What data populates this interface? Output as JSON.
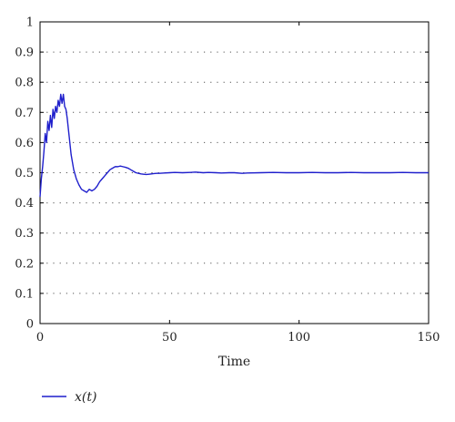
{
  "chart_data": {
    "type": "line",
    "xlabel": "Time",
    "ylabel": "",
    "xlim": [
      0,
      150
    ],
    "ylim": [
      0,
      1
    ],
    "xticks": [
      0,
      50,
      100,
      150
    ],
    "yticks": [
      0,
      0.1,
      0.2,
      0.3,
      0.4,
      0.5,
      0.6,
      0.7,
      0.8,
      0.9,
      1
    ],
    "grid": "horizontal-dotted",
    "legend_position": "bottom-left",
    "colors": {
      "line": "#1f1fcc",
      "axis": "#000000",
      "grid": "#555555"
    },
    "series": [
      {
        "name": "x(t)",
        "x": [
          0,
          0.5,
          1,
          1.5,
          2,
          2.5,
          3,
          3.5,
          4,
          4.5,
          5,
          5.5,
          6,
          6.5,
          7,
          7.5,
          8,
          8.5,
          9,
          9.5,
          10,
          10.5,
          11,
          11.5,
          12,
          13,
          14,
          15,
          16,
          17,
          18,
          19,
          20,
          21,
          22,
          23,
          24,
          25,
          26,
          27,
          28,
          29,
          30,
          31,
          32,
          33,
          34,
          35,
          36,
          37,
          38,
          39,
          40,
          41,
          42,
          43,
          44,
          45,
          46,
          48,
          50,
          52,
          55,
          58,
          60,
          63,
          65,
          68,
          70,
          73,
          75,
          78,
          80,
          85,
          90,
          95,
          100,
          105,
          110,
          115,
          120,
          125,
          130,
          135,
          140,
          145,
          150
        ],
        "y": [
          0.42,
          0.48,
          0.52,
          0.57,
          0.63,
          0.6,
          0.67,
          0.64,
          0.69,
          0.65,
          0.71,
          0.68,
          0.72,
          0.7,
          0.74,
          0.72,
          0.76,
          0.73,
          0.76,
          0.72,
          0.71,
          0.68,
          0.64,
          0.6,
          0.56,
          0.51,
          0.48,
          0.46,
          0.445,
          0.44,
          0.435,
          0.445,
          0.44,
          0.445,
          0.455,
          0.47,
          0.48,
          0.49,
          0.5,
          0.51,
          0.515,
          0.52,
          0.52,
          0.522,
          0.52,
          0.518,
          0.515,
          0.51,
          0.505,
          0.5,
          0.498,
          0.496,
          0.495,
          0.494,
          0.495,
          0.496,
          0.497,
          0.498,
          0.498,
          0.499,
          0.5,
          0.501,
          0.5,
          0.501,
          0.502,
          0.5,
          0.501,
          0.5,
          0.499,
          0.5,
          0.5,
          0.498,
          0.499,
          0.5,
          0.501,
          0.5,
          0.5,
          0.501,
          0.5,
          0.5,
          0.501,
          0.5,
          0.5,
          0.5,
          0.501,
          0.5,
          0.5
        ]
      }
    ]
  }
}
